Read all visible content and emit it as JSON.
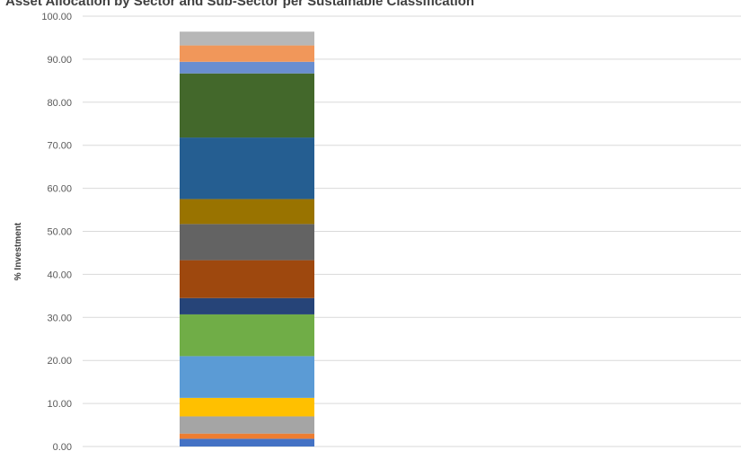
{
  "chart_data": {
    "type": "bar",
    "stacked": true,
    "title": "Asset Allocation by Sector and Sub-Sector per Sustainable Classification",
    "xlabel": "",
    "ylabel": "% Investment",
    "ylim": [
      0,
      100
    ],
    "yticks": [
      "0.00",
      "10.00",
      "20.00",
      "30.00",
      "40.00",
      "50.00",
      "60.00",
      "70.00",
      "80.00",
      "90.00",
      "100.00"
    ],
    "grid": true,
    "legend": "none",
    "categories": [
      ""
    ],
    "series": [
      {
        "color": "#4472C4",
        "values": [
          1.8
        ]
      },
      {
        "color": "#ED7D31",
        "values": [
          1.2
        ]
      },
      {
        "color": "#A5A5A5",
        "values": [
          4.0
        ]
      },
      {
        "color": "#FFC000",
        "values": [
          4.3
        ]
      },
      {
        "color": "#5B9BD5",
        "values": [
          9.7
        ]
      },
      {
        "color": "#70AD47",
        "values": [
          9.7
        ]
      },
      {
        "color": "#264478",
        "values": [
          3.8
        ]
      },
      {
        "color": "#9E480E",
        "values": [
          8.8
        ]
      },
      {
        "color": "#636363",
        "values": [
          8.4
        ]
      },
      {
        "color": "#997300",
        "values": [
          5.8
        ]
      },
      {
        "color": "#255E91",
        "values": [
          14.3
        ]
      },
      {
        "color": "#43682B",
        "values": [
          14.9
        ]
      },
      {
        "color": "#698ED0",
        "values": [
          2.7
        ]
      },
      {
        "color": "#F1975A",
        "values": [
          3.8
        ]
      },
      {
        "color": "#B7B7B7",
        "values": [
          3.2
        ]
      }
    ]
  }
}
